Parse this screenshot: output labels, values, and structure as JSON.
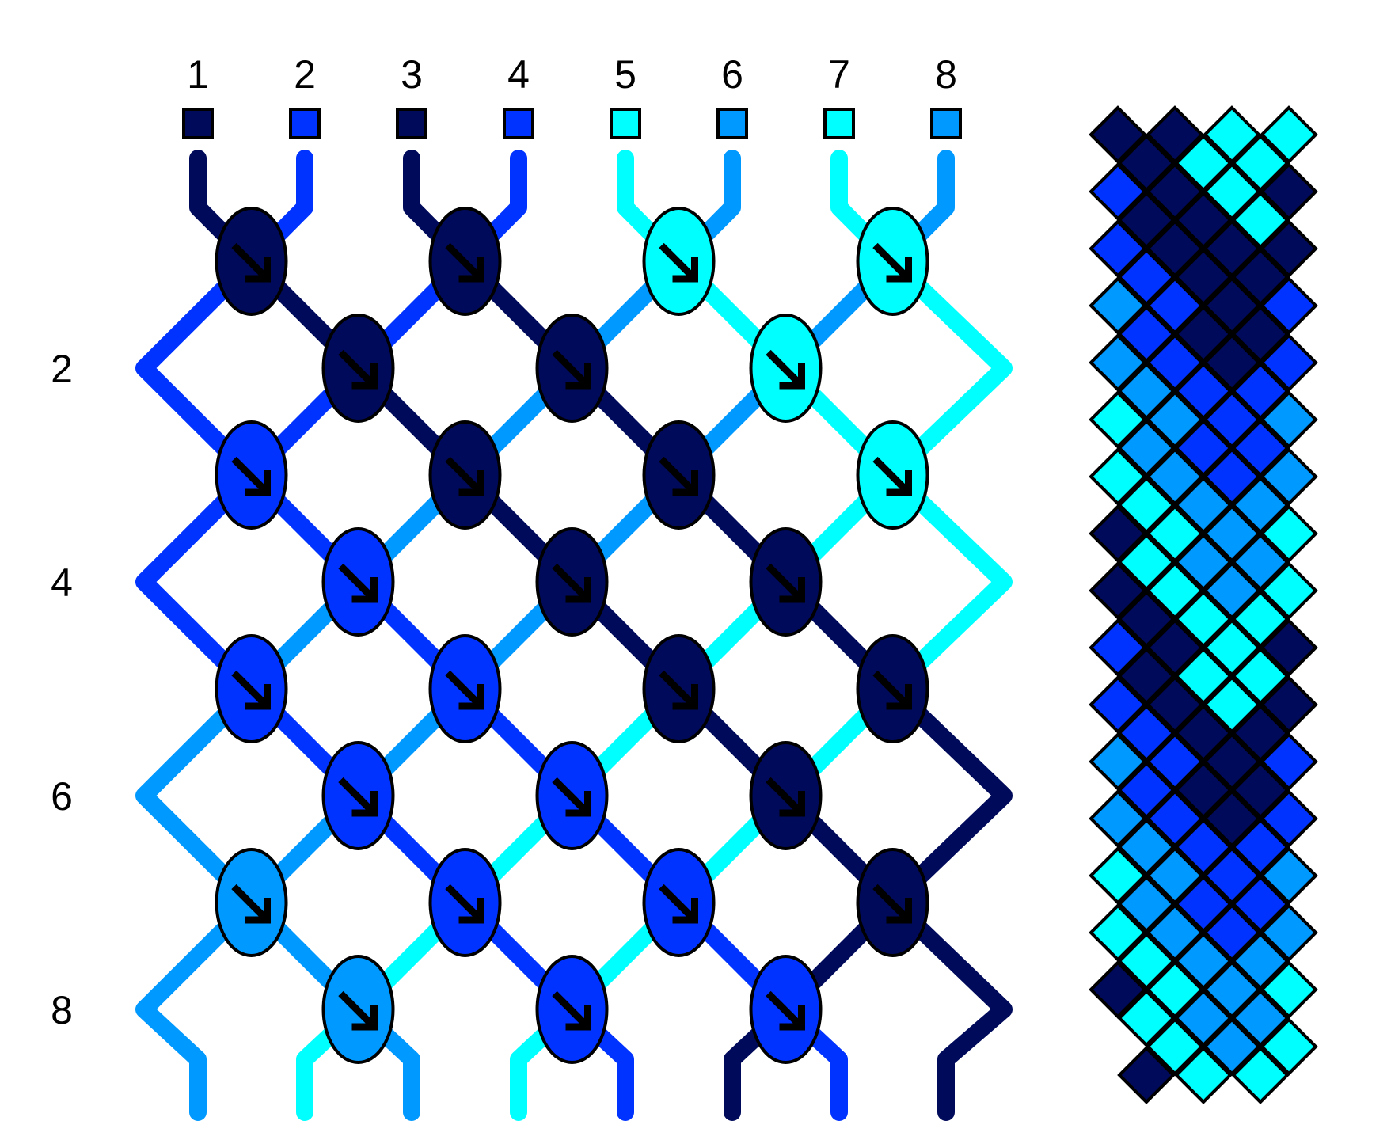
{
  "colors": {
    "A": "#000a5a",
    "B": "#0033ff",
    "C": "#00ffff",
    "D": "#0099ff",
    "outline": "#000000",
    "arrow": "#000000"
  },
  "strings": {
    "labels": [
      "1",
      "2",
      "3",
      "4",
      "5",
      "6",
      "7",
      "8"
    ],
    "colors": [
      "A",
      "B",
      "A",
      "B",
      "C",
      "D",
      "C",
      "D"
    ]
  },
  "rows": {
    "labels": [
      "2",
      "4",
      "6",
      "8"
    ],
    "label_rows": [
      2,
      4,
      6,
      8
    ]
  },
  "knots": [
    [
      "A",
      "A",
      "C",
      "C"
    ],
    [
      "A",
      "A",
      "C"
    ],
    [
      "B",
      "A",
      "A",
      "C"
    ],
    [
      "B",
      "A",
      "A"
    ],
    [
      "B",
      "B",
      "A",
      "A"
    ],
    [
      "B",
      "B",
      "A"
    ],
    [
      "D",
      "B",
      "B",
      "A"
    ],
    [
      "D",
      "B",
      "B"
    ]
  ],
  "knot_type": "forward",
  "knot_icon": "arrow-down-right-icon",
  "preview": {
    "columns": [
      [
        "A",
        "B",
        "B",
        "D",
        "D",
        "C",
        "C",
        "A",
        "A",
        "B",
        "B",
        "D",
        "D",
        "C",
        "C",
        "A"
      ],
      [
        "A",
        "A",
        "B",
        "B",
        "D",
        "D",
        "C",
        "C",
        "A",
        "A",
        "B",
        "B",
        "D",
        "D",
        "C",
        "C",
        "A"
      ],
      [
        "A",
        "A",
        "A",
        "B",
        "B",
        "D",
        "D",
        "C",
        "C",
        "A",
        "A",
        "B",
        "B",
        "D",
        "D",
        "C",
        "C"
      ],
      [
        "C",
        "A",
        "A",
        "A",
        "B",
        "B",
        "D",
        "D",
        "C",
        "C",
        "A",
        "A",
        "B",
        "B",
        "D",
        "D",
        "C"
      ],
      [
        "C",
        "C",
        "A",
        "A",
        "A",
        "B",
        "B",
        "D",
        "D",
        "C",
        "C",
        "A",
        "A",
        "B",
        "B",
        "D",
        "D"
      ],
      [
        "C",
        "C",
        "A",
        "A",
        "B",
        "B",
        "D",
        "D",
        "C",
        "C",
        "A",
        "A",
        "B",
        "B",
        "D",
        "D",
        "C"
      ],
      [
        "C",
        "A",
        "A",
        "B",
        "B",
        "D",
        "D",
        "C",
        "C",
        "A",
        "A",
        "B",
        "B",
        "D",
        "D",
        "C",
        "C"
      ]
    ]
  }
}
